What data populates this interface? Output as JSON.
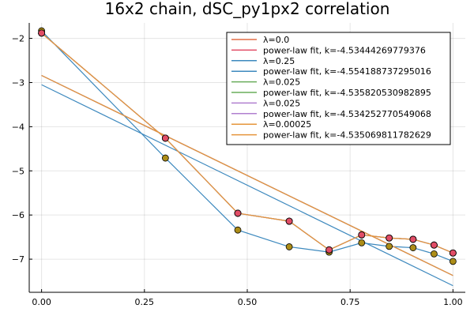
{
  "chart_data": {
    "type": "line",
    "title": "16x2 chain, dSC_py1px2 correlation",
    "xlabel": "",
    "ylabel": "",
    "xlim": [
      -0.03,
      1.03
    ],
    "ylim": [
      -7.75,
      -1.65
    ],
    "x_ticks": [
      0.0,
      0.25,
      0.5,
      0.75,
      1.0
    ],
    "x_tick_labels": [
      "0.00",
      "0.25",
      "0.50",
      "0.75",
      "1.00"
    ],
    "y_ticks": [
      -7,
      -6,
      -5,
      -4,
      -3,
      -2
    ],
    "y_tick_labels": [
      "−7",
      "−6",
      "−5",
      "−4",
      "−3",
      "−2"
    ],
    "grid": true,
    "legend_position": "top-right",
    "x": [
      0.0,
      0.301,
      0.477,
      0.602,
      0.699,
      0.778,
      0.845,
      0.903,
      0.954,
      1.0
    ],
    "series": [
      {
        "name": "λ=0.0",
        "color": "#e26f46",
        "marker_color": "#e14d66",
        "kind": "data",
        "values": [
          -1.88,
          -4.26,
          -5.96,
          -6.14,
          -6.79,
          -6.45,
          -6.52,
          -6.55,
          -6.68,
          -6.86
        ]
      },
      {
        "name": "power-law fit, k=-4.53444269779376",
        "color": "#e14d66",
        "kind": "fit",
        "line": [
          [
            0.0,
            -2.84
          ],
          [
            1.0,
            -7.37
          ]
        ]
      },
      {
        "name": "λ=0.25",
        "color": "#3d89be",
        "marker_color": "#ac8d18",
        "kind": "data",
        "values": [
          -1.83,
          -4.71,
          -6.34,
          -6.72,
          -6.84,
          -6.63,
          -6.71,
          -6.74,
          -6.88,
          -7.05
        ]
      },
      {
        "name": "power-law fit, k=-4.554188737295016",
        "color": "#3d89be",
        "kind": "fit",
        "line": [
          [
            0.0,
            -3.05
          ],
          [
            1.0,
            -7.6
          ]
        ]
      },
      {
        "name": "λ=0.025",
        "color": "#6aad5b",
        "marker_color": "#e14d66",
        "kind": "data",
        "values": [
          -1.88,
          -4.26,
          -5.96,
          -6.14,
          -6.79,
          -6.45,
          -6.52,
          -6.55,
          -6.68,
          -6.86
        ]
      },
      {
        "name": "power-law fit, k=-4.535820530982895",
        "color": "#6aad5b",
        "kind": "fit",
        "line": [
          [
            0.0,
            -2.84
          ],
          [
            1.0,
            -7.37
          ]
        ]
      },
      {
        "name": "λ=0.025",
        "color": "#b07fcf",
        "marker_color": "#e14d66",
        "kind": "data",
        "values": [
          -1.88,
          -4.26,
          -5.96,
          -6.14,
          -6.79,
          -6.45,
          -6.52,
          -6.55,
          -6.68,
          -6.86
        ]
      },
      {
        "name": "power-law fit, k=-4.534252770549068",
        "color": "#b07fcf",
        "kind": "fit",
        "line": [
          [
            0.0,
            -2.84
          ],
          [
            1.0,
            -7.37
          ]
        ]
      },
      {
        "name": "λ=0.00025",
        "color": "#e5953b",
        "marker_color": "#e14d66",
        "kind": "data",
        "values": [
          -1.88,
          -4.26,
          -5.96,
          -6.14,
          -6.79,
          -6.45,
          -6.52,
          -6.55,
          -6.68,
          -6.86
        ]
      },
      {
        "name": "power-law fit, k=-4.535069811782629",
        "color": "#e5953b",
        "kind": "fit",
        "line": [
          [
            0.0,
            -2.84
          ],
          [
            1.0,
            -7.37
          ]
        ]
      }
    ]
  }
}
